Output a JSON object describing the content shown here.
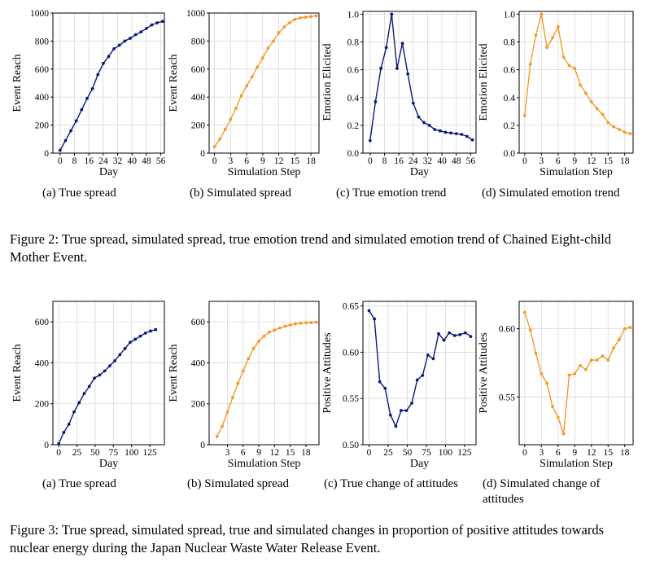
{
  "figures": [
    {
      "caption": "Figure 2: True spread, simulated spread, true emotion trend and simulated emotion trend of Chained Eight-child Mother Event.",
      "subcaptions": [
        "(a)  True spread",
        "(b)  Simulated spread",
        "(c)  True emotion trend",
        "(d)  Simulated emotion trend"
      ]
    },
    {
      "caption": "Figure 3: True spread, simulated spread, true and simulated changes in proportion of positive attitudes towards nuclear energy during the Japan Nuclear Waste Water Release Event.",
      "subcaptions": [
        "(a)  True spread",
        "(b)  Simulated spread",
        "(c)  True change of attitudes",
        "(d)  Simulated change of attitudes"
      ]
    }
  ],
  "colors": {
    "true_series": "#0b1a7a",
    "simulated_series": "#f39a2a",
    "grid": "#d9d9d9"
  },
  "chart_data": [
    {
      "type": "line",
      "figure": 2,
      "panel": "a",
      "xlabel": "Day",
      "ylabel": "Event Reach",
      "xlim": [
        -4,
        58
      ],
      "ylim": [
        0,
        1000
      ],
      "xticks": [
        0,
        8,
        16,
        24,
        32,
        40,
        48,
        56
      ],
      "yticks": [
        0,
        200,
        400,
        600,
        800,
        1000
      ],
      "xticklabels": [
        "0",
        "8",
        "16",
        "24",
        "32",
        "40",
        "48",
        "56"
      ],
      "yticklabels": [
        "0",
        "200",
        "400",
        "600",
        "800",
        "1000"
      ],
      "grid": true,
      "color_key": "true_series",
      "x": [
        0,
        3,
        6,
        9,
        12,
        15,
        18,
        21,
        24,
        27,
        30,
        33,
        36,
        39,
        42,
        45,
        48,
        51,
        54,
        57
      ],
      "y": [
        20,
        90,
        160,
        230,
        310,
        390,
        460,
        560,
        640,
        690,
        745,
        770,
        800,
        820,
        845,
        865,
        890,
        915,
        930,
        940
      ]
    },
    {
      "type": "line",
      "figure": 2,
      "panel": "b",
      "xlabel": "Simulation Step",
      "ylabel": "Event Reach",
      "xlim": [
        -1,
        19.5
      ],
      "ylim": [
        0,
        1000
      ],
      "xticks": [
        0,
        3,
        6,
        9,
        12,
        15,
        18
      ],
      "yticks": [
        0,
        200,
        400,
        600,
        800,
        1000
      ],
      "xticklabels": [
        "0",
        "3",
        "6",
        "9",
        "12",
        "15",
        "18"
      ],
      "yticklabels": [
        "0",
        "200",
        "400",
        "600",
        "800",
        "1000"
      ],
      "grid": true,
      "color_key": "simulated_series",
      "x": [
        0,
        1,
        2,
        3,
        4,
        5,
        6,
        7,
        8,
        9,
        10,
        11,
        12,
        13,
        14,
        15,
        16,
        17,
        18,
        19
      ],
      "y": [
        45,
        100,
        170,
        240,
        320,
        410,
        480,
        545,
        615,
        680,
        750,
        800,
        860,
        900,
        930,
        955,
        965,
        970,
        975,
        980
      ]
    },
    {
      "type": "line",
      "figure": 2,
      "panel": "c",
      "xlabel": "Day",
      "ylabel": "Emotion Elicited",
      "xlim": [
        -4,
        59
      ],
      "ylim": [
        0,
        1.02
      ],
      "xticks": [
        0,
        8,
        16,
        24,
        32,
        40,
        48,
        56
      ],
      "yticks": [
        0.0,
        0.2,
        0.4,
        0.6,
        0.8,
        1.0
      ],
      "xticklabels": [
        "0",
        "8",
        "16",
        "24",
        "32",
        "40",
        "48",
        "56"
      ],
      "yticklabels": [
        "0.0",
        "0.2",
        "0.4",
        "0.6",
        "0.8",
        "1.0"
      ],
      "grid": true,
      "color_key": "true_series",
      "x": [
        0,
        3,
        6,
        9,
        12,
        15,
        18,
        21,
        24,
        27,
        30,
        33,
        36,
        39,
        42,
        45,
        48,
        51,
        54,
        57
      ],
      "y": [
        0.09,
        0.37,
        0.61,
        0.76,
        1.0,
        0.61,
        0.79,
        0.57,
        0.36,
        0.26,
        0.22,
        0.2,
        0.17,
        0.16,
        0.15,
        0.145,
        0.14,
        0.135,
        0.12,
        0.095
      ]
    },
    {
      "type": "line",
      "figure": 2,
      "panel": "d",
      "xlabel": "Simulation Step",
      "ylabel": "Emotion Elicited",
      "xlim": [
        -1,
        19.5
      ],
      "ylim": [
        0,
        1.02
      ],
      "xticks": [
        0,
        3,
        6,
        9,
        12,
        15,
        18
      ],
      "yticks": [
        0.0,
        0.2,
        0.4,
        0.6,
        0.8,
        1.0
      ],
      "xticklabels": [
        "0",
        "3",
        "6",
        "9",
        "12",
        "15",
        "18"
      ],
      "yticklabels": [
        "0.0",
        "0.2",
        "0.4",
        "0.6",
        "0.8",
        "1.0"
      ],
      "grid": true,
      "color_key": "simulated_series",
      "x": [
        0,
        1,
        2,
        3,
        4,
        5,
        6,
        7,
        8,
        9,
        10,
        11,
        12,
        13,
        14,
        15,
        16,
        17,
        18,
        19
      ],
      "y": [
        0.27,
        0.64,
        0.85,
        1.0,
        0.76,
        0.83,
        0.91,
        0.69,
        0.63,
        0.61,
        0.49,
        0.43,
        0.37,
        0.32,
        0.28,
        0.22,
        0.19,
        0.17,
        0.15,
        0.14
      ]
    },
    {
      "type": "line",
      "figure": 3,
      "panel": "a",
      "xlabel": "Day",
      "ylabel": "Event Reach",
      "xlim": [
        -8,
        145
      ],
      "ylim": [
        0,
        700
      ],
      "xticks": [
        0,
        25,
        50,
        75,
        100,
        125
      ],
      "yticks": [
        0,
        200,
        400,
        600
      ],
      "xticklabels": [
        "0",
        "25",
        "50",
        "75",
        "100",
        "125"
      ],
      "yticklabels": [
        "0",
        "200",
        "400",
        "600"
      ],
      "grid": true,
      "color_key": "true_series",
      "x": [
        0,
        7,
        14,
        21,
        28,
        35,
        42,
        49,
        56,
        63,
        70,
        77,
        84,
        91,
        98,
        105,
        112,
        119,
        126,
        133
      ],
      "y": [
        5,
        60,
        100,
        160,
        205,
        250,
        285,
        325,
        340,
        360,
        385,
        410,
        440,
        470,
        500,
        515,
        530,
        545,
        555,
        562
      ]
    },
    {
      "type": "line",
      "figure": 3,
      "panel": "b",
      "xlabel": "Simulation Step",
      "ylabel": "Event Reach",
      "xlim": [
        -0.5,
        20.5
      ],
      "ylim": [
        0,
        700
      ],
      "xticks": [
        3,
        6,
        9,
        12,
        15,
        18
      ],
      "yticks": [
        0,
        200,
        400,
        600
      ],
      "xticklabels": [
        "3",
        "6",
        "9",
        "12",
        "15",
        "18"
      ],
      "yticklabels": [
        "0",
        "200",
        "400",
        "600"
      ],
      "grid": true,
      "color_key": "simulated_series",
      "x": [
        1,
        2,
        3,
        4,
        5,
        6,
        7,
        8,
        9,
        10,
        11,
        12,
        13,
        14,
        15,
        16,
        17,
        18,
        19,
        20
      ],
      "y": [
        40,
        90,
        160,
        230,
        300,
        360,
        420,
        470,
        505,
        530,
        550,
        560,
        570,
        578,
        585,
        590,
        593,
        595,
        596,
        598
      ]
    },
    {
      "type": "line",
      "figure": 3,
      "panel": "c",
      "xlabel": "Day",
      "ylabel": "Positive Attitudes",
      "xlim": [
        -8,
        140
      ],
      "ylim": [
        0.5,
        0.655
      ],
      "xticks": [
        0,
        25,
        50,
        75,
        100,
        125
      ],
      "yticks": [
        0.5,
        0.55,
        0.6,
        0.65
      ],
      "xticklabels": [
        "0",
        "25",
        "50",
        "75",
        "100",
        "125"
      ],
      "yticklabels": [
        "0.50",
        "0.55",
        "0.60",
        "0.65"
      ],
      "grid": true,
      "color_key": "true_series",
      "x": [
        0,
        7,
        14,
        21,
        28,
        35,
        42,
        49,
        56,
        63,
        70,
        77,
        84,
        91,
        98,
        105,
        112,
        119,
        126,
        133
      ],
      "y": [
        0.645,
        0.636,
        0.568,
        0.561,
        0.532,
        0.52,
        0.537,
        0.537,
        0.545,
        0.57,
        0.575,
        0.597,
        0.593,
        0.62,
        0.613,
        0.621,
        0.618,
        0.619,
        0.621,
        0.617
      ]
    },
    {
      "type": "line",
      "figure": 3,
      "panel": "d",
      "xlabel": "Simulation Step",
      "ylabel": "Positive Attitudes",
      "xlim": [
        -1,
        19.5
      ],
      "ylim": [
        0.515,
        0.62
      ],
      "xticks": [
        0,
        3,
        6,
        9,
        12,
        15,
        18
      ],
      "yticks": [
        0.55,
        0.6
      ],
      "xticklabels": [
        "0",
        "3",
        "6",
        "9",
        "12",
        "15",
        "18"
      ],
      "yticklabels": [
        "0.55",
        "0.60"
      ],
      "grid": true,
      "color_key": "simulated_series",
      "x": [
        0,
        1,
        2,
        3,
        4,
        5,
        6,
        7,
        8,
        9,
        10,
        11,
        12,
        13,
        14,
        15,
        16,
        17,
        18,
        19
      ],
      "y": [
        0.612,
        0.599,
        0.582,
        0.567,
        0.56,
        0.543,
        0.535,
        0.523,
        0.566,
        0.567,
        0.573,
        0.57,
        0.577,
        0.577,
        0.58,
        0.577,
        0.586,
        0.592,
        0.6,
        0.601
      ]
    }
  ]
}
